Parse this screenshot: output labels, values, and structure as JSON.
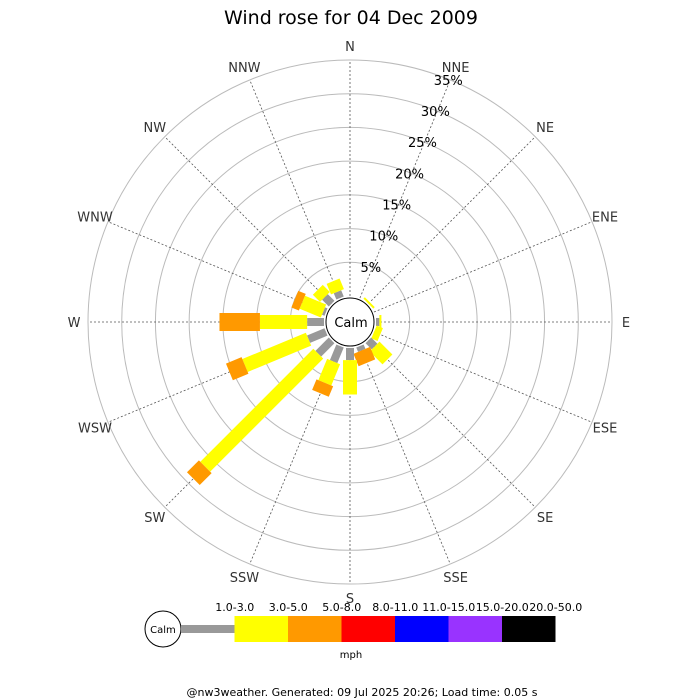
{
  "title": "Wind rose for 04 Dec 2009",
  "footer": "@nw3weather. Generated: 09 Jul 2025 20:26; Load time: 0.05 s",
  "calm_label": "Calm",
  "unit": "mph",
  "directions": [
    "N",
    "NNE",
    "NE",
    "ENE",
    "E",
    "ESE",
    "SE",
    "SSE",
    "S",
    "SSW",
    "SW",
    "WSW",
    "W",
    "WNW",
    "NW",
    "NNW"
  ],
  "ring_labels": [
    "5%",
    "10%",
    "15%",
    "20%",
    "25%",
    "30%",
    "35%"
  ],
  "chart_data": {
    "type": "wind-rose",
    "title": "Wind rose for 04 Dec 2009",
    "unit": "mph",
    "ring_max_percent": 35,
    "ring_step_percent": 5,
    "speed_bins": [
      {
        "label": "1.0-3.0",
        "color": "#999999"
      },
      {
        "label": "3.0-5.0",
        "color": "#ffff00"
      },
      {
        "label": "5.0-8.0",
        "color": "#ff9900"
      },
      {
        "label": "8.0-11.0",
        "color": "#ff0000"
      },
      {
        "label": "11.0-15.0",
        "color": "#0000ff"
      },
      {
        "label": "15.0-20.0",
        "color": "#9933ff"
      },
      {
        "label": "20.0-50.0",
        "color": "#000000"
      }
    ],
    "series": [
      {
        "direction": "N",
        "values": [
          0,
          0,
          0,
          0,
          0,
          0,
          0
        ]
      },
      {
        "direction": "NNE",
        "values": [
          0,
          0,
          0,
          0,
          0,
          0,
          0
        ]
      },
      {
        "direction": "NE",
        "values": [
          0,
          0.3,
          0,
          0,
          0,
          0,
          0
        ]
      },
      {
        "direction": "ENE",
        "values": [
          0,
          0,
          0,
          0,
          0,
          0,
          0
        ]
      },
      {
        "direction": "E",
        "values": [
          0.5,
          0.3,
          0,
          0,
          0,
          0,
          0
        ]
      },
      {
        "direction": "ESE",
        "values": [
          0,
          1.0,
          0,
          0,
          0,
          0,
          0
        ]
      },
      {
        "direction": "SE",
        "values": [
          1.3,
          2.7,
          0,
          0,
          0,
          0,
          0
        ]
      },
      {
        "direction": "SSE",
        "values": [
          0.7,
          0,
          2.0,
          0,
          0,
          0,
          0
        ]
      },
      {
        "direction": "S",
        "values": [
          1.8,
          5.1,
          0,
          0,
          0,
          0,
          0
        ]
      },
      {
        "direction": "SSW",
        "values": [
          2.5,
          3.4,
          1.7,
          0,
          0,
          0,
          0
        ]
      },
      {
        "direction": "SW",
        "values": [
          2.8,
          23.7,
          2.5,
          0,
          0,
          0,
          0
        ]
      },
      {
        "direction": "WSW",
        "values": [
          2.8,
          10.2,
          2.5,
          0,
          0,
          0,
          0
        ]
      },
      {
        "direction": "W",
        "values": [
          2.5,
          7.0,
          6.0,
          0,
          0,
          0,
          0
        ]
      },
      {
        "direction": "WNW",
        "values": [
          0.4,
          3.4,
          1.2,
          0,
          0,
          0,
          0
        ]
      },
      {
        "direction": "NW",
        "values": [
          1.4,
          1.5,
          0,
          0,
          0,
          0,
          0
        ]
      },
      {
        "direction": "NNW",
        "values": [
          1.0,
          1.7,
          0,
          0,
          0,
          0,
          0
        ]
      }
    ]
  }
}
